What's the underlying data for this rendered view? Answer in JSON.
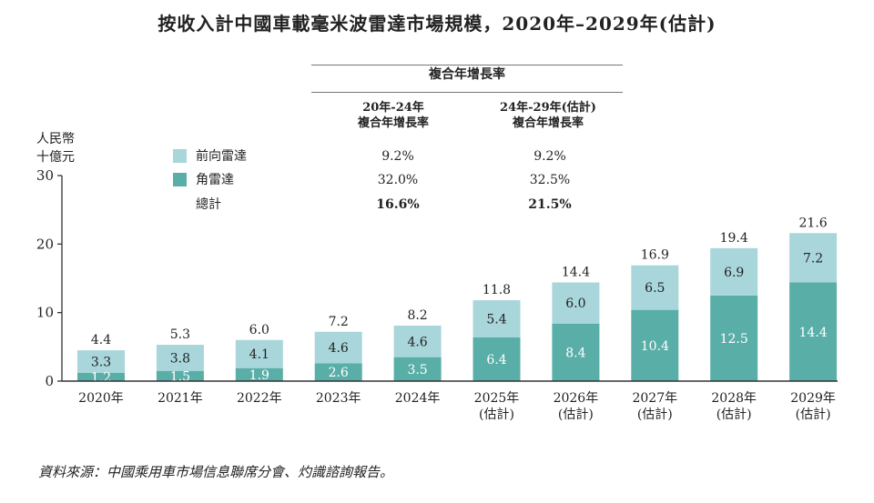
{
  "title": "按收入計中國車載毫米波雷達市場規模，2020年–2029年(估計)",
  "unit_line1": "人民幣",
  "unit_line2": "十億元",
  "cagr_table": {
    "header": "複合年增長率",
    "col1_line1": "20年-24年",
    "col1_line2": "複合年增長率",
    "col2_line1": "24年-29年(估計)",
    "col2_line2": "複合年增長率",
    "rows": [
      {
        "label": "前向雷達",
        "col1": "9.2%",
        "col2": "9.2%"
      },
      {
        "label": "角雷達",
        "col1": "32.0%",
        "col2": "32.5%"
      },
      {
        "label": "總計",
        "col1": "16.6%",
        "col2": "21.5%"
      }
    ]
  },
  "source": "資料來源：中國乘用車市場信息聯席分會、灼識諮詢報告。",
  "colors": {
    "front": "#a8d6da",
    "corner": "#5aaea8",
    "axis": "#333333"
  },
  "chart_data": {
    "type": "bar",
    "stacked": true,
    "categories": [
      "2020年",
      "2021年",
      "2022年",
      "2023年",
      "2024年",
      "2025年(估計)",
      "2026年(估計)",
      "2027年(估計)",
      "2028年(估計)",
      "2029年(估計)"
    ],
    "category_lines": [
      [
        "2020年"
      ],
      [
        "2021年"
      ],
      [
        "2022年"
      ],
      [
        "2023年"
      ],
      [
        "2024年"
      ],
      [
        "2025年",
        "(估計)"
      ],
      [
        "2026年",
        "(估計)"
      ],
      [
        "2027年",
        "(估計)"
      ],
      [
        "2028年",
        "(估計)"
      ],
      [
        "2029年",
        "(估計)"
      ]
    ],
    "series": [
      {
        "name": "角雷達",
        "values": [
          1.2,
          1.5,
          1.9,
          2.6,
          3.5,
          6.4,
          8.4,
          10.4,
          12.5,
          14.4
        ]
      },
      {
        "name": "前向雷達",
        "values": [
          3.3,
          3.8,
          4.1,
          4.6,
          4.6,
          5.4,
          6.0,
          6.5,
          6.9,
          7.2
        ]
      }
    ],
    "totals": [
      "4.4",
      "5.3",
      "6.0",
      "7.2",
      "8.2",
      "11.8",
      "14.4",
      "16.9",
      "19.4",
      "21.6"
    ],
    "series_labels": [
      [
        "1.2",
        "1.5",
        "1.9",
        "2.6",
        "3.5",
        "6.4",
        "8.4",
        "10.4",
        "12.5",
        "14.4"
      ],
      [
        "3.3",
        "3.8",
        "4.1",
        "4.6",
        "4.6",
        "5.4",
        "6.0",
        "6.5",
        "6.9",
        "7.2"
      ]
    ],
    "yticks": [
      "0",
      "10",
      "20",
      "30"
    ],
    "ylim": [
      0,
      30
    ],
    "legend_position": "top-left",
    "grid": false
  }
}
